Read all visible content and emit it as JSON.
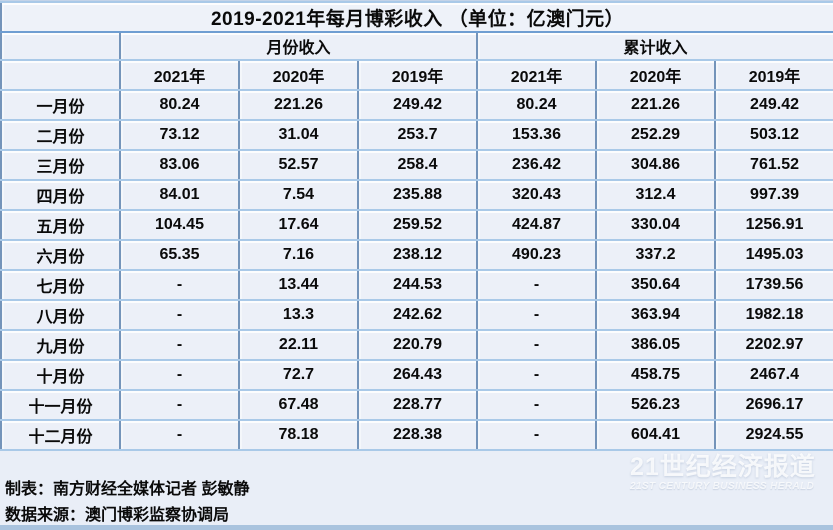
{
  "title": "2019-2021年每月博彩收入 （单位：亿澳门元）",
  "footer": {
    "prepared_by": "制表：南方财经全媒体记者 彭敏静",
    "data_source": "数据来源：澳门博彩监察协调局"
  },
  "watermark": {
    "cn": "21世纪经济报道",
    "en": "21ST CENTURY BUSINESS HERALD"
  },
  "colors": {
    "cell_fill": "#ecf0f8",
    "h_gridline": "#a9c9e8",
    "v_gridline": "#7494ba",
    "title_underline": "#6f9ed2",
    "bottom_band": "#a9c3de",
    "text": "#0a0a0a",
    "watermark_text": "#ffffff"
  },
  "chart_data": {
    "type": "table",
    "title": "2019-2021年每月博彩收入 （单位：亿澳门元）",
    "unit": "亿澳门元",
    "group_headers": [
      "月份收入",
      "累计收入"
    ],
    "year_headers": [
      "2021年",
      "2020年",
      "2019年",
      "2021年",
      "2020年",
      "2019年"
    ],
    "rows": [
      {
        "month": "一月份",
        "values": [
          "80.24",
          "221.26",
          "249.42",
          "80.24",
          "221.26",
          "249.42"
        ]
      },
      {
        "month": "二月份",
        "values": [
          "73.12",
          "31.04",
          "253.7",
          "153.36",
          "252.29",
          "503.12"
        ]
      },
      {
        "month": "三月份",
        "values": [
          "83.06",
          "52.57",
          "258.4",
          "236.42",
          "304.86",
          "761.52"
        ]
      },
      {
        "month": "四月份",
        "values": [
          "84.01",
          "7.54",
          "235.88",
          "320.43",
          "312.4",
          "997.39"
        ]
      },
      {
        "month": "五月份",
        "values": [
          "104.45",
          "17.64",
          "259.52",
          "424.87",
          "330.04",
          "1256.91"
        ]
      },
      {
        "month": "六月份",
        "values": [
          "65.35",
          "7.16",
          "238.12",
          "490.23",
          "337.2",
          "1495.03"
        ]
      },
      {
        "month": "七月份",
        "values": [
          "-",
          "13.44",
          "244.53",
          "-",
          "350.64",
          "1739.56"
        ]
      },
      {
        "month": "八月份",
        "values": [
          "-",
          "13.3",
          "242.62",
          "-",
          "363.94",
          "1982.18"
        ]
      },
      {
        "month": "九月份",
        "values": [
          "-",
          "22.11",
          "220.79",
          "-",
          "386.05",
          "2202.97"
        ]
      },
      {
        "month": "十月份",
        "values": [
          "-",
          "72.7",
          "264.43",
          "-",
          "458.75",
          "2467.4"
        ]
      },
      {
        "month": "十一月份",
        "values": [
          "-",
          "67.48",
          "228.77",
          "-",
          "526.23",
          "2696.17"
        ]
      },
      {
        "month": "十二月份",
        "values": [
          "-",
          "78.18",
          "228.38",
          "-",
          "604.41",
          "2924.55"
        ]
      }
    ],
    "series": [
      {
        "name": "月份收入 2021年",
        "values": [
          80.24,
          73.12,
          83.06,
          84.01,
          104.45,
          65.35,
          null,
          null,
          null,
          null,
          null,
          null
        ]
      },
      {
        "name": "月份收入 2020年",
        "values": [
          221.26,
          31.04,
          52.57,
          7.54,
          17.64,
          7.16,
          13.44,
          13.3,
          22.11,
          72.7,
          67.48,
          78.18
        ]
      },
      {
        "name": "月份收入 2019年",
        "values": [
          249.42,
          253.7,
          258.4,
          235.88,
          259.52,
          238.12,
          244.53,
          242.62,
          220.79,
          264.43,
          228.77,
          228.38
        ]
      },
      {
        "name": "累计收入 2021年",
        "values": [
          80.24,
          153.36,
          236.42,
          320.43,
          424.87,
          490.23,
          null,
          null,
          null,
          null,
          null,
          null
        ]
      },
      {
        "name": "累计收入 2020年",
        "values": [
          221.26,
          252.29,
          304.86,
          312.4,
          330.04,
          337.2,
          350.64,
          363.94,
          386.05,
          458.75,
          526.23,
          604.41
        ]
      },
      {
        "name": "累计收入 2019年",
        "values": [
          249.42,
          503.12,
          761.52,
          997.39,
          1256.91,
          1495.03,
          1739.56,
          1982.18,
          2202.97,
          2467.4,
          2696.17,
          2924.55
        ]
      }
    ],
    "layout": {
      "grid": true,
      "legend": "none"
    }
  }
}
